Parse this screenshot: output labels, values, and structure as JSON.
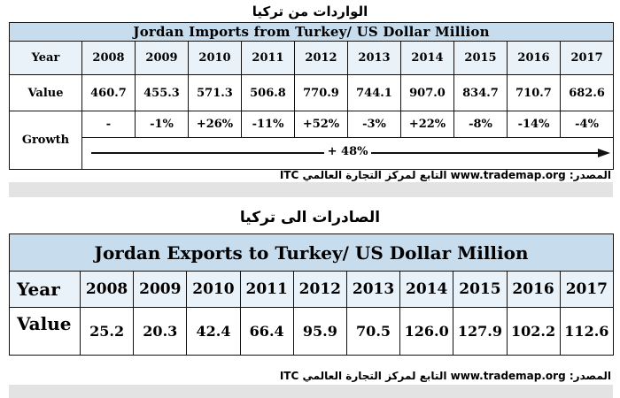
{
  "imports": {
    "title_ar": "الواردات من تركيا",
    "title": "Jordan Imports from Turkey/ US Dollar Million",
    "year_label": "Year",
    "value_label": "Value",
    "growth_label": "Growth",
    "years": [
      "2008",
      "2009",
      "2010",
      "2011",
      "2012",
      "2013",
      "2014",
      "2015",
      "2016",
      "2017"
    ],
    "values": [
      "460.7",
      "455.3",
      "571.3",
      "506.8",
      "770.9",
      "744.1",
      "907.0",
      "834.7",
      "710.7",
      "682.6"
    ],
    "growth": [
      "-",
      "-1%",
      "+26%",
      "-11%",
      "+52%",
      "-3%",
      "+22%",
      "-8%",
      "-14%",
      "-4%"
    ],
    "overall_growth": "+ 48%",
    "source_prefix": "المصدر:",
    "source_site": "www.trademap.org",
    "source_suffix": "التابع لمركز التجارة العالمي ITC"
  },
  "exports": {
    "title_ar": "الصادرات الى تركيا",
    "title": "Jordan Exports to Turkey/ US Dollar Million",
    "year_label": "Year",
    "value_label": "Value",
    "years": [
      "2008",
      "2009",
      "2010",
      "2011",
      "2012",
      "2013",
      "2014",
      "2015",
      "2016",
      "2017"
    ],
    "values": [
      "25.2",
      "20.3",
      "42.4",
      "66.4",
      "95.9",
      "70.5",
      "126.0",
      "127.9",
      "102.2",
      "112.6"
    ],
    "source_prefix": "المصدر:",
    "source_site": "www.trademap.org",
    "source_suffix": "التابع لمركز التجارة العالمي ITC"
  },
  "colors": {
    "title_fill": "#c7dced",
    "header_fill": "#eaf2f9",
    "band": "#e3e3e3"
  },
  "chart_data": [
    {
      "type": "table",
      "title": "Jordan Imports from Turkey/ US Dollar Million",
      "categories": [
        "2008",
        "2009",
        "2010",
        "2011",
        "2012",
        "2013",
        "2014",
        "2015",
        "2016",
        "2017"
      ],
      "series": [
        {
          "name": "Value",
          "values": [
            460.7,
            455.3,
            571.3,
            506.8,
            770.9,
            744.1,
            907.0,
            834.7,
            710.7,
            682.6
          ]
        },
        {
          "name": "Growth",
          "values": [
            "-",
            "-1%",
            "+26%",
            "-11%",
            "+52%",
            "-3%",
            "+22%",
            "-8%",
            "-14%",
            "-4%"
          ]
        }
      ],
      "annotations": [
        "+ 48%"
      ]
    },
    {
      "type": "table",
      "title": "Jordan Exports to Turkey/ US Dollar Million",
      "categories": [
        "2008",
        "2009",
        "2010",
        "2011",
        "2012",
        "2013",
        "2014",
        "2015",
        "2016",
        "2017"
      ],
      "series": [
        {
          "name": "Value",
          "values": [
            25.2,
            20.3,
            42.4,
            66.4,
            95.9,
            70.5,
            126.0,
            127.9,
            102.2,
            112.6
          ]
        }
      ]
    }
  ]
}
